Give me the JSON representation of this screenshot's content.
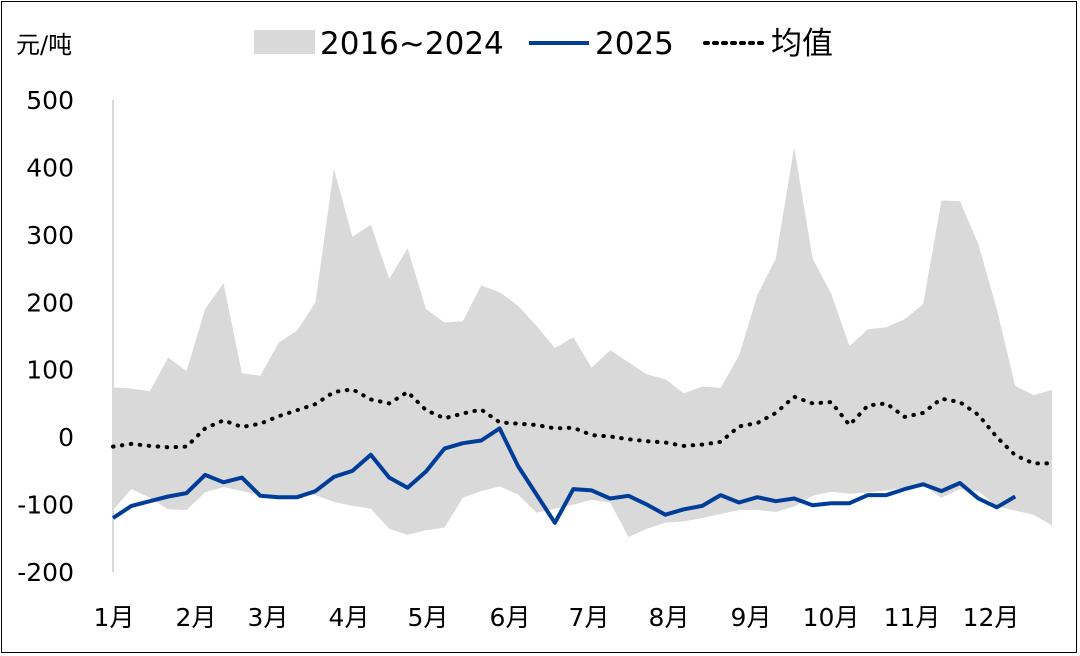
{
  "chart_data": {
    "type": "line",
    "unit_label": "元/吨",
    "legend": {
      "placement": "top",
      "items": [
        {
          "label": "2016~2024",
          "kind": "area",
          "color": "#d9d9d9"
        },
        {
          "label": "2025",
          "kind": "line",
          "color": "#003d99"
        },
        {
          "label": "均值",
          "kind": "dotted",
          "color": "#000000"
        }
      ]
    },
    "ylim": [
      -200,
      500
    ],
    "yticks": [
      "500",
      "400",
      "300",
      "200",
      "100",
      "0",
      "-100",
      "-200"
    ],
    "xticks": [
      "1月",
      "2月",
      "3月",
      "4月",
      "5月",
      "6月",
      "7月",
      "8月",
      "9月",
      "10月",
      "11月",
      "12月"
    ],
    "grid": false,
    "series": [
      {
        "name": "2016~2024",
        "kind": "band",
        "upper": [
          74,
          72,
          68,
          118,
          98,
          190,
          228,
          95,
          91,
          140,
          158,
          200,
          398,
          297,
          315,
          235,
          280,
          190,
          170,
          172,
          225,
          215,
          195,
          165,
          132,
          148,
          103,
          129,
          111,
          93,
          86,
          65,
          75,
          73,
          121,
          211,
          265,
          430,
          265,
          213,
          135,
          160,
          163,
          175,
          197,
          351,
          350,
          286,
          190,
          76,
          62,
          70
        ],
        "lower": [
          -108,
          -77,
          -90,
          -107,
          -108,
          -82,
          -74,
          -80,
          -86,
          -90,
          -86,
          -86,
          -96,
          -102,
          -106,
          -136,
          -145,
          -138,
          -134,
          -90,
          -80,
          -73,
          -85,
          -112,
          -106,
          -100,
          -93,
          -97,
          -148,
          -136,
          -127,
          -125,
          -120,
          -114,
          -108,
          -108,
          -111,
          -103,
          -87,
          -81,
          -84,
          -82,
          -79,
          -75,
          -71,
          -90,
          -77,
          -80,
          -103,
          -109,
          -115,
          -131
        ]
      },
      {
        "name": "2025",
        "kind": "line",
        "values": [
          -120,
          -102,
          -95,
          -88,
          -83,
          -56,
          -67,
          -60,
          -87,
          -89,
          -89,
          -80,
          -59,
          -50,
          -26,
          -60,
          -75,
          -51,
          -17,
          -9,
          -5,
          13,
          -43,
          -85,
          -127,
          -77,
          -79,
          -91,
          -87,
          -100,
          -115,
          -107,
          -102,
          -86,
          -97,
          -89,
          -95,
          -91,
          -101,
          -98,
          -98,
          -86,
          -86,
          -77,
          -70,
          -80,
          -68,
          -91,
          -104,
          -88
        ]
      },
      {
        "name": "均值",
        "kind": "dotted",
        "values": [
          -14,
          -10,
          -13,
          -15,
          -14,
          13,
          25,
          15,
          20,
          31,
          40,
          49,
          67,
          71,
          56,
          50,
          67,
          40,
          28,
          35,
          41,
          22,
          20,
          18,
          13,
          14,
          3,
          1,
          -3,
          -6,
          -8,
          -13,
          -11,
          -7,
          16,
          21,
          36,
          60,
          50,
          52,
          18,
          47,
          50,
          30,
          36,
          57,
          52,
          33,
          0,
          -27,
          -39,
          -39
        ]
      }
    ]
  }
}
